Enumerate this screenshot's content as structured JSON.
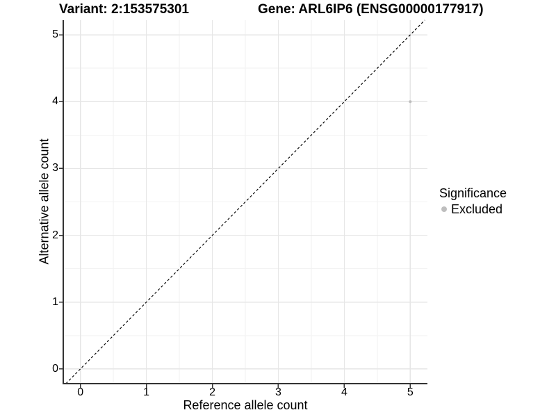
{
  "header": {
    "variant_title": "Variant: 2:153575301",
    "gene_title": "Gene: ARL6IP6 (ENSG00000177917)"
  },
  "chart_data": {
    "type": "scatter",
    "title": "Variant: 2:153575301   Gene: ARL6IP6 (ENSG00000177917)",
    "xlabel": "Reference allele count",
    "ylabel": "Alternative allele count",
    "xlim": [
      -0.26,
      5.26
    ],
    "ylim": [
      -0.22,
      5.22
    ],
    "x_ticks": [
      0,
      1,
      2,
      3,
      4,
      5
    ],
    "y_ticks": [
      0,
      1,
      2,
      3,
      4,
      5
    ],
    "x_minor_ticks": [
      0.5,
      1.5,
      2.5,
      3.5,
      4.5
    ],
    "y_minor_ticks": [
      0.5,
      1.5,
      2.5,
      3.5,
      4.5
    ],
    "grid": true,
    "legend_position": "right",
    "series": [
      {
        "name": "Excluded",
        "color": "#bebebe",
        "points": [
          {
            "x": 5,
            "y": 4
          }
        ]
      }
    ],
    "reference_line": {
      "kind": "abline",
      "slope": 1,
      "intercept": 0,
      "style": "dashed",
      "color": "#000000"
    }
  },
  "legend": {
    "title": "Significance",
    "items": [
      {
        "label": "Excluded",
        "color": "#bebebe",
        "marker": "circle"
      }
    ]
  },
  "colors": {
    "background": "#ffffff",
    "grid_major": "#e6e6e6",
    "grid_minor": "#f2f2f2",
    "axis_line": "#333333",
    "tick_mark": "#333333",
    "text": "#000000",
    "point": "#bebebe"
  }
}
